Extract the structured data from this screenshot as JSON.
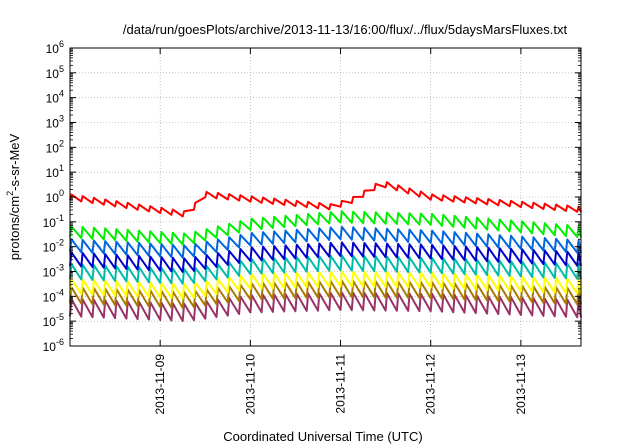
{
  "chart_data": {
    "type": "line",
    "title": "/data/run/goesPlots/archive/2013-11-13/16:00/flux/../flux/5daysMarsFluxes.txt",
    "xlabel": "Coordinated Universal Time (UTC)",
    "ylabel": {
      "prefix": "protons/cm",
      "sup": "2",
      "suffix": "-s-sr-MeV"
    },
    "y_scale": "log",
    "ylim": [
      1e-06,
      1000000.0
    ],
    "y_ticks": [
      {
        "exp": "-6"
      },
      {
        "exp": "-5"
      },
      {
        "exp": "-4"
      },
      {
        "exp": "-3"
      },
      {
        "exp": "-2"
      },
      {
        "exp": "-1"
      },
      {
        "exp": "0"
      },
      {
        "exp": "1"
      },
      {
        "exp": "2"
      },
      {
        "exp": "3"
      },
      {
        "exp": "4"
      },
      {
        "exp": "5"
      },
      {
        "exp": "6"
      }
    ],
    "y_tick_base": "10",
    "xlim": [
      "2013-11-08T00:00",
      "2013-11-13T16:00"
    ],
    "x_ticks": [
      "2013-11-09",
      "2013-11-10",
      "2013-11-11",
      "2013-11-12",
      "2013-11-13"
    ],
    "grid": true,
    "legend": "none",
    "series": [
      {
        "color": "#ff0000",
        "base": [
          [
            0,
            0.0
          ],
          [
            1.3,
            -0.7
          ],
          [
            1.5,
            0.1
          ],
          [
            2.9,
            -0.4
          ],
          [
            3.15,
            -0.1
          ],
          [
            3.45,
            0.55
          ],
          [
            4.0,
            0.0
          ],
          [
            5.67,
            -0.5
          ]
        ],
        "amp": 0.22
      },
      {
        "color": "#00ee00",
        "base": [
          [
            0,
            -1.4
          ],
          [
            1.3,
            -1.7
          ],
          [
            2.0,
            -1.1
          ],
          [
            3.0,
            -0.8
          ],
          [
            4.0,
            -0.9
          ],
          [
            5.67,
            -1.4
          ]
        ],
        "amp": 0.45
      },
      {
        "color": "#0066dd",
        "base": [
          [
            0,
            -1.95
          ],
          [
            1.3,
            -2.2
          ],
          [
            2.0,
            -1.7
          ],
          [
            3.0,
            -1.45
          ],
          [
            4.0,
            -1.6
          ],
          [
            5.67,
            -2.0
          ]
        ],
        "amp": 0.5
      },
      {
        "color": "#0000cc",
        "base": [
          [
            0,
            -2.5
          ],
          [
            1.3,
            -2.75
          ],
          [
            2.0,
            -2.3
          ],
          [
            3.0,
            -2.1
          ],
          [
            4.0,
            -2.2
          ],
          [
            5.67,
            -2.5
          ]
        ],
        "amp": 0.55
      },
      {
        "color": "#00bbaa",
        "base": [
          [
            0,
            -3.0
          ],
          [
            1.3,
            -3.2
          ],
          [
            2.0,
            -2.8
          ],
          [
            3.0,
            -2.65
          ],
          [
            4.0,
            -2.75
          ],
          [
            5.67,
            -3.0
          ]
        ],
        "amp": 0.6
      },
      {
        "color": "#ffff00",
        "base": [
          [
            0,
            -3.6
          ],
          [
            1.3,
            -3.8
          ],
          [
            2.0,
            -3.4
          ],
          [
            3.0,
            -3.3
          ],
          [
            4.0,
            -3.35
          ],
          [
            5.67,
            -3.6
          ]
        ],
        "amp": 0.6
      },
      {
        "color": "#aa7700",
        "base": [
          [
            0,
            -3.95
          ],
          [
            1.3,
            -4.15
          ],
          [
            2.0,
            -3.8
          ],
          [
            3.0,
            -3.7
          ],
          [
            4.0,
            -3.75
          ],
          [
            5.67,
            -4.0
          ]
        ],
        "amp": 0.65
      },
      {
        "color": "#993366",
        "base": [
          [
            0,
            -4.45
          ],
          [
            1.3,
            -4.65
          ],
          [
            2.0,
            -4.3
          ],
          [
            3.0,
            -4.2
          ],
          [
            4.0,
            -4.25
          ],
          [
            5.67,
            -4.5
          ]
        ],
        "amp": 0.7
      }
    ],
    "cycle_days": 0.125
  }
}
